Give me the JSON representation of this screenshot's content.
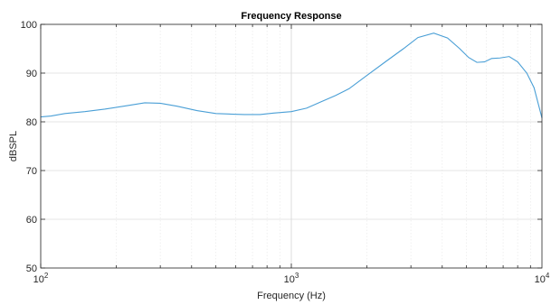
{
  "chart_data": {
    "type": "line",
    "title": "Frequency Response",
    "xlabel": "Frequency (Hz)",
    "ylabel": "dBSPL",
    "x_scale": "log",
    "xlim": [
      100,
      10000
    ],
    "ylim": [
      50,
      100
    ],
    "grid": true,
    "x_ticks": [
      {
        "value": 100,
        "base": "10",
        "exp": "2"
      },
      {
        "value": 1000,
        "base": "10",
        "exp": "3"
      },
      {
        "value": 10000,
        "base": "10",
        "exp": "4"
      }
    ],
    "y_ticks": [
      50,
      60,
      70,
      80,
      90,
      100
    ],
    "series": [
      {
        "color": "#4a9fd6",
        "x": [
          100,
          110,
          125,
          150,
          180,
          220,
          260,
          300,
          350,
          420,
          500,
          560,
          650,
          750,
          850,
          1000,
          1150,
          1300,
          1500,
          1700,
          2000,
          2400,
          2800,
          3200,
          3700,
          4200,
          4700,
          5100,
          5500,
          5900,
          6300,
          6800,
          7400,
          8000,
          8700,
          9300,
          10000
        ],
        "y": [
          81.0,
          81.2,
          81.7,
          82.1,
          82.6,
          83.3,
          83.9,
          83.8,
          83.2,
          82.3,
          81.7,
          81.6,
          81.5,
          81.5,
          81.8,
          82.1,
          82.8,
          84.0,
          85.4,
          86.8,
          89.5,
          92.5,
          95.0,
          97.3,
          98.2,
          97.2,
          95.0,
          93.2,
          92.2,
          92.3,
          93.0,
          93.1,
          93.4,
          92.3,
          90.0,
          87.0,
          80.8
        ]
      }
    ]
  }
}
